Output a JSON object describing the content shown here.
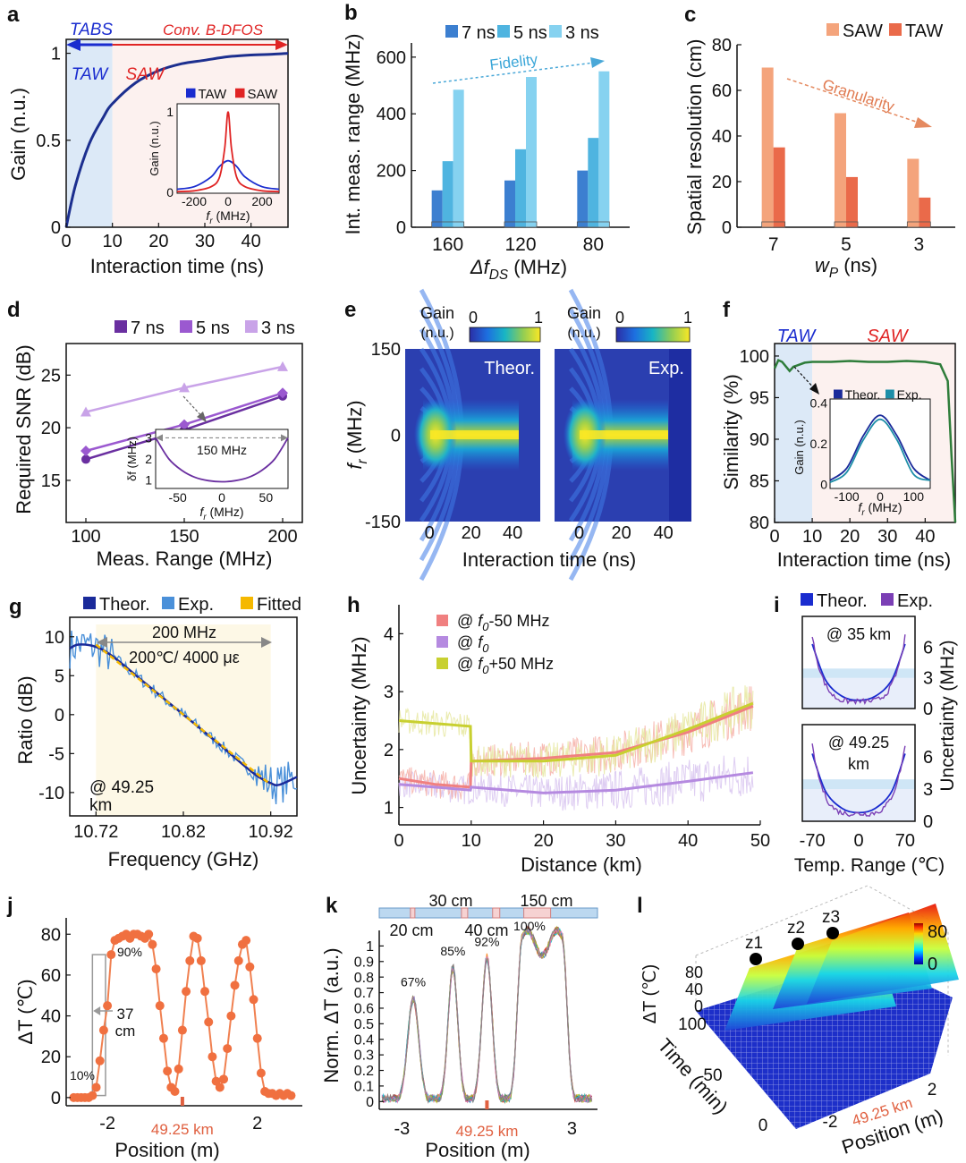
{
  "panels": {
    "a": {
      "letter": "a",
      "xlabel": "Interaction time (ns)",
      "ylabel": "Gain (n.u.)",
      "xticks": [
        "0",
        "10",
        "20",
        "30",
        "40"
      ],
      "yticks": [
        "0",
        "0.5",
        "1"
      ],
      "tabs": "TABS",
      "conv": "Conv. B-DFOS",
      "taw": "TAW",
      "saw": "SAW",
      "inset": {
        "ylabel": "Gain (n.u.)",
        "xlabel": "f_r (MHz)",
        "xticks": [
          "-200",
          "0",
          "200"
        ],
        "yticks": [
          "0",
          "1"
        ],
        "legend": [
          "TAW",
          "SAW"
        ]
      }
    },
    "b": {
      "letter": "b",
      "ylabel": "Int. meas. range (MHz)",
      "xlabel": "Δf_DS (MHz)",
      "yticks": [
        "0",
        "200",
        "400",
        "600"
      ],
      "legend": [
        "7 ns",
        "5 ns",
        "3 ns"
      ],
      "annotation": "Fidelity"
    },
    "c": {
      "letter": "c",
      "ylabel": "Spatial  resolution (cm)",
      "xlabel": "w_P (ns)",
      "yticks": [
        "0",
        "20",
        "40",
        "60",
        "80"
      ],
      "legend": [
        "SAW",
        "TAW"
      ],
      "annotation": "Granularity"
    },
    "d": {
      "letter": "d",
      "ylabel": "Required SNR (dB)",
      "xlabel": "Meas. Range (MHz)",
      "xticks": [
        "100",
        "150",
        "200"
      ],
      "yticks": [
        "15",
        "20",
        "25"
      ],
      "legend": [
        "7 ns",
        "5 ns",
        "3 ns"
      ],
      "inset": {
        "annotation": "150 MHz",
        "ylabel": "δf (MHz)",
        "xlabel": "f_r (MHz)",
        "xticks": [
          "-50",
          "0",
          "50"
        ],
        "yticks": [
          "1",
          "2",
          "3"
        ]
      }
    },
    "e": {
      "letter": "e",
      "ylabel": "f_r (MHz)",
      "xlabel": "Interaction time (ns)",
      "yticks": [
        "150",
        "0",
        "-150"
      ],
      "xticks": [
        "0",
        "20",
        "40"
      ],
      "colorbar_label": [
        "Gain",
        "(n.u.)"
      ],
      "colorbar_ticks": [
        "0",
        "1"
      ],
      "left_label": "Theor.",
      "right_label": "Exp."
    },
    "f": {
      "letter": "f",
      "ylabel": "Similarity (%)",
      "xlabel": "Interaction time (ns)",
      "xticks": [
        "0",
        "10",
        "20",
        "30",
        "40"
      ],
      "yticks": [
        "80",
        "85",
        "90",
        "95",
        "100"
      ],
      "taw": "TAW",
      "saw": "SAW",
      "inset": {
        "legend": [
          "Theor.",
          "Exp."
        ],
        "ylabel": "Gain (n.u.)",
        "xlabel": "f_r (MHz)",
        "xticks": [
          "-100",
          "0",
          "100"
        ],
        "yticks": [
          "0",
          "0.2",
          "0.4"
        ]
      }
    },
    "g": {
      "letter": "g",
      "ylabel": "Ratio (dB)",
      "xlabel": "Frequency (GHz)",
      "xticks": [
        "10.72",
        "10.82",
        "10.92"
      ],
      "yticks": [
        "10",
        "5",
        "0",
        "-5",
        "-10"
      ],
      "legend": [
        "Theor.",
        "Exp.",
        "Fitted"
      ],
      "annotation_range": "200 MHz",
      "annotation_cond": "200℃/ 4000 με",
      "location": "@ 49.25\nkm"
    },
    "h": {
      "letter": "h",
      "ylabel": "Uncertainty (MHz)",
      "xlabel": "Distance (km)",
      "xticks": [
        "0",
        "10",
        "20",
        "30",
        "40",
        "50"
      ],
      "yticks": [
        "1",
        "2",
        "3",
        "4"
      ],
      "legend": [
        "@ f0-50 MHz",
        "@ f0",
        "@ f0+50 MHz"
      ]
    },
    "i": {
      "letter": "i",
      "legend": [
        "Theor.",
        "Exp."
      ],
      "ylabel": "Uncertainty (MHz)",
      "xlabel": "Temp. Range (℃)",
      "xticks": [
        "-70",
        "0",
        "70"
      ],
      "yticks": [
        "0",
        "3",
        "6"
      ],
      "top_label": "@ 35 km",
      "bottom_label": "@ 49.25\nkm"
    },
    "j": {
      "letter": "j",
      "ylabel": "ΔT (℃)",
      "xlabel": "Position (m)",
      "xticks": [
        "-2",
        "2"
      ],
      "yticks": [
        "0",
        "20",
        "40",
        "60",
        "80"
      ],
      "marker_label": "49.25 km",
      "annotations": {
        "low": "10%",
        "high": "90%",
        "width": "37\ncm"
      }
    },
    "k": {
      "letter": "k",
      "ylabel": "Norm. ΔT (a.u.)",
      "xlabel": "Position (m)",
      "xticks": [
        "-3",
        "3"
      ],
      "yticks": [
        "0",
        "0.1",
        "0.2",
        "0.3",
        "0.4",
        "0.5",
        "0.6",
        "0.7",
        "0.8",
        "0.9",
        "1"
      ],
      "marker_label": "49.25 km",
      "bar_labels": [
        "20 cm",
        "30 cm",
        "40 cm",
        "150 cm"
      ],
      "peak_labels": [
        "67%",
        "85%",
        "92%",
        "100%"
      ]
    },
    "l": {
      "letter": "l",
      "zlabel": "ΔT (℃)",
      "ylabel": "Time (min)",
      "xlabel": "Position (m)",
      "zticks": [
        "0",
        "40",
        "80"
      ],
      "yticks": [
        "0",
        "50",
        "100"
      ],
      "xticks": [
        "-2",
        "2"
      ],
      "marker_label": "49.25 km",
      "points": [
        "z1",
        "z2",
        "z3"
      ],
      "colorbar_ticks": [
        "0",
        "80"
      ]
    }
  },
  "chart_data": [
    {
      "panel": "a",
      "type": "line",
      "title": "",
      "xlabel": "Interaction time (ns)",
      "ylabel": "Gain (n.u.)",
      "xlim": [
        0,
        48
      ],
      "ylim": [
        0,
        1.08
      ],
      "series": [
        {
          "x": [
            0,
            2,
            5,
            8,
            10,
            15,
            20,
            25,
            30,
            35,
            40,
            45,
            48
          ],
          "values": [
            0,
            0.24,
            0.48,
            0.63,
            0.71,
            0.83,
            0.9,
            0.94,
            0.96,
            0.98,
            0.99,
            0.995,
            1.0
          ]
        }
      ]
    },
    {
      "panel": "a-inset",
      "type": "line",
      "xlabel": "f_r (MHz)",
      "ylabel": "Gain (n.u.)",
      "xlim": [
        -300,
        300
      ],
      "ylim": [
        0,
        1.1
      ],
      "series": [
        {
          "name": "TAW",
          "x": [
            -300,
            -200,
            -100,
            -50,
            0,
            50,
            100,
            200,
            300
          ],
          "values": [
            0.05,
            0.08,
            0.2,
            0.33,
            0.4,
            0.33,
            0.2,
            0.08,
            0.05
          ]
        },
        {
          "name": "SAW",
          "x": [
            -300,
            -200,
            -100,
            -50,
            -20,
            0,
            20,
            50,
            100,
            200,
            300
          ],
          "values": [
            0.02,
            0.03,
            0.08,
            0.2,
            0.55,
            1.0,
            0.55,
            0.2,
            0.08,
            0.03,
            0.02
          ]
        }
      ]
    },
    {
      "panel": "b",
      "type": "bar",
      "title": "",
      "xlabel": "Δf_DS (MHz)",
      "ylabel": "Int. meas. range (MHz)",
      "ylim": [
        0,
        650
      ],
      "categories": [
        "160",
        "120",
        "80"
      ],
      "series": [
        {
          "name": "7 ns",
          "values": [
            130,
            165,
            200
          ]
        },
        {
          "name": "5 ns",
          "values": [
            233,
            275,
            315
          ]
        },
        {
          "name": "3 ns",
          "values": [
            485,
            530,
            550
          ]
        }
      ]
    },
    {
      "panel": "c",
      "type": "bar",
      "title": "",
      "xlabel": "w_P (ns)",
      "ylabel": "Spatial  resolution (cm)",
      "ylim": [
        0,
        80
      ],
      "categories": [
        "7",
        "5",
        "3"
      ],
      "series": [
        {
          "name": "SAW",
          "values": [
            70,
            50,
            30
          ]
        },
        {
          "name": "TAW",
          "values": [
            35,
            22,
            13
          ]
        }
      ]
    },
    {
      "panel": "d",
      "type": "line",
      "title": "",
      "xlabel": "Meas. Range (MHz)",
      "ylabel": "Required SNR (dB)",
      "xlim": [
        90,
        210
      ],
      "ylim": [
        11,
        28
      ],
      "x": [
        100,
        150,
        200
      ],
      "series": [
        {
          "name": "7 ns",
          "values": [
            17,
            19.8,
            23
          ]
        },
        {
          "name": "5 ns",
          "values": [
            17.8,
            20.3,
            23.3
          ]
        },
        {
          "name": "3 ns",
          "values": [
            21.5,
            23.8,
            25.8
          ]
        }
      ]
    },
    {
      "panel": "d-inset",
      "type": "line",
      "xlabel": "f_r (MHz)",
      "ylabel": "δf (MHz)",
      "xlim": [
        -75,
        75
      ],
      "ylim": [
        0.6,
        3.4
      ],
      "series": [
        {
          "x": [
            -75,
            -60,
            -45,
            -30,
            -15,
            0,
            15,
            30,
            45,
            60,
            75
          ],
          "values": [
            3.0,
            2.0,
            1.45,
            1.12,
            0.97,
            0.92,
            0.97,
            1.12,
            1.45,
            2.0,
            3.0
          ]
        }
      ]
    },
    {
      "panel": "e",
      "type": "heatmap",
      "xlabel": "Interaction time (ns)",
      "ylabel": "f_r (MHz)",
      "xlim": [
        -10,
        55
      ],
      "ylim": [
        -150,
        150
      ],
      "colorbar": [
        0,
        1
      ]
    },
    {
      "panel": "f",
      "type": "line",
      "title": "",
      "xlabel": "Interaction time (ns)",
      "ylabel": "Similarity (%)",
      "xlim": [
        0,
        48
      ],
      "ylim": [
        80,
        101.5
      ],
      "series": [
        {
          "x": [
            0,
            1,
            2,
            4,
            5,
            8,
            10,
            15,
            20,
            25,
            30,
            35,
            40,
            44,
            46,
            47,
            48
          ],
          "values": [
            98.5,
            99.5,
            99.3,
            98.2,
            98.7,
            99.2,
            99.3,
            99.3,
            99.4,
            99.3,
            99.3,
            99.4,
            99.3,
            99.0,
            97,
            88,
            80
          ]
        }
      ]
    },
    {
      "panel": "f-inset",
      "type": "line",
      "xlabel": "f_r (MHz)",
      "ylabel": "Gain (n.u.)",
      "xlim": [
        -150,
        150
      ],
      "ylim": [
        -0.02,
        0.42
      ],
      "series": [
        {
          "name": "Theor.",
          "x": [
            -150,
            -100,
            -50,
            0,
            50,
            100,
            150
          ],
          "values": [
            0.02,
            0.08,
            0.24,
            0.34,
            0.24,
            0.08,
            0.02
          ]
        },
        {
          "name": "Exp.",
          "x": [
            -150,
            -100,
            -50,
            0,
            50,
            100,
            150
          ],
          "values": [
            0.01,
            0.06,
            0.22,
            0.32,
            0.22,
            0.05,
            0.02
          ]
        }
      ]
    },
    {
      "panel": "g",
      "type": "line",
      "title": "",
      "xlabel": "Frequency (GHz)",
      "ylabel": "Ratio (dB)",
      "xlim": [
        10.69,
        10.95
      ],
      "ylim": [
        -13,
        12.5
      ],
      "series": [
        {
          "name": "Theor.",
          "x": [
            10.69,
            10.7,
            10.72,
            10.74,
            10.78,
            10.82,
            10.86,
            10.9,
            10.92,
            10.93,
            10.95
          ],
          "values": [
            8.5,
            9.0,
            8.7,
            7.4,
            3.7,
            0,
            -3.7,
            -7.5,
            -8.8,
            -9.0,
            -8.0
          ]
        },
        {
          "name": "Fitted",
          "x": [
            10.72,
            10.92
          ],
          "values": [
            9,
            -9
          ]
        }
      ]
    },
    {
      "panel": "h",
      "type": "line",
      "title": "",
      "xlabel": "Distance (km)",
      "ylabel": "Uncertainty (MHz)",
      "xlim": [
        0,
        50
      ],
      "ylim": [
        0.7,
        4.5
      ],
      "series": [
        {
          "name": "@ f0-50 MHz",
          "x": [
            0,
            5,
            9.9,
            10,
            20,
            30,
            40,
            49
          ],
          "values": [
            1.5,
            1.4,
            1.35,
            1.8,
            1.85,
            1.95,
            2.3,
            2.75
          ]
        },
        {
          "name": "@ f0",
          "x": [
            0,
            5,
            9.9,
            10,
            20,
            30,
            40,
            49
          ],
          "values": [
            1.4,
            1.35,
            1.3,
            1.35,
            1.25,
            1.3,
            1.45,
            1.6
          ]
        },
        {
          "name": "@ f0+50 MHz",
          "x": [
            0,
            5,
            9.9,
            10,
            20,
            30,
            40,
            49
          ],
          "values": [
            2.5,
            2.45,
            2.4,
            1.8,
            1.8,
            1.9,
            2.35,
            2.8
          ]
        }
      ]
    },
    {
      "panel": "i",
      "type": "line",
      "xlabel": "Temp. Range (℃)",
      "ylabel": "Uncertainty (MHz)",
      "xlim": [
        -85,
        85
      ],
      "ylim": [
        0,
        9
      ],
      "series": [
        {
          "name": "Theor.",
          "x": [
            -70,
            -50,
            -25,
            0,
            25,
            50,
            70
          ],
          "values": [
            6.3,
            2.8,
            1.2,
            0.8,
            1.2,
            2.8,
            6.3
          ]
        },
        {
          "name": "Exp.",
          "x": [
            -70,
            -50,
            -25,
            0,
            25,
            50,
            70
          ],
          "values": [
            7.0,
            2.0,
            0.9,
            0.7,
            0.9,
            2.2,
            7.2
          ]
        }
      ]
    },
    {
      "panel": "j",
      "type": "line",
      "title": "",
      "xlabel": "Position (m)",
      "ylabel": "ΔT (℃)",
      "xlim": [
        -3.1,
        3.2
      ],
      "ylim": [
        -4,
        88
      ],
      "series": [
        {
          "x": [
            -2.9,
            -2.8,
            -2.7,
            -2.6,
            -2.5,
            -2.4,
            -2.3,
            -2.2,
            -2.1,
            -2.0,
            -1.9,
            -1.8,
            -1.7,
            -1.6,
            -1.5,
            -1.4,
            -1.3,
            -1.2,
            -1.1,
            -1.0,
            -0.9,
            -0.8,
            -0.7,
            -0.6,
            -0.5,
            -0.4,
            -0.3,
            -0.2,
            -0.1,
            0,
            0.1,
            0.2,
            0.3,
            0.4,
            0.5,
            0.6,
            0.7,
            0.8,
            0.9,
            1.0,
            1.1,
            1.2,
            1.3,
            1.4,
            1.5,
            1.6,
            1.7,
            1.8,
            1.9,
            2.0,
            2.1,
            2.2,
            2.3,
            2.4,
            2.5,
            2.6,
            2.7,
            2.8,
            2.9
          ],
          "values": [
            0,
            0,
            0,
            0,
            0,
            1,
            5,
            18,
            33,
            45,
            70,
            77,
            78,
            79,
            80,
            78,
            80,
            80,
            79,
            78,
            80,
            75,
            63,
            45,
            29,
            13,
            5,
            3,
            14,
            33,
            52,
            67,
            79,
            78,
            67,
            52,
            37,
            20,
            8,
            5,
            9,
            24,
            40,
            55,
            67,
            75,
            77,
            64,
            48,
            29,
            12,
            3,
            2,
            2,
            1,
            2,
            1,
            2,
            1
          ]
        }
      ]
    },
    {
      "panel": "k",
      "type": "line",
      "title": "",
      "xlabel": "Position (m)",
      "ylabel": "Norm. ΔT (a.u.)",
      "xlim": [
        -3.8,
        3.9
      ],
      "ylim": [
        -0.05,
        1.1
      ],
      "series": [
        {
          "x": [
            -3.8,
            -3.4,
            -3.0,
            -2.6,
            -2.2,
            -1.9,
            -1.5,
            -1.2,
            -0.9,
            -0.6,
            -0.3,
            0,
            0.3,
            0.6,
            0.9,
            1.2,
            1.5,
            1.9,
            2.3,
            2.7,
            3.0,
            3.3,
            3.8
          ],
          "values": [
            0.02,
            0.02,
            0.05,
            0.55,
            0.2,
            0.08,
            0.3,
            0.9,
            0.2,
            0.02,
            0.1,
            0.9,
            0.35,
            0.02,
            0.05,
            0.9,
            1.0,
            1.02,
            1.05,
            0.9,
            0.4,
            0.06,
            0.02
          ]
        }
      ]
    },
    {
      "panel": "l",
      "type": "surface",
      "xlabel": "Position (m)",
      "ylabel": "Time (min)",
      "zlabel": "ΔT (℃)",
      "xlim": [
        -3,
        3
      ],
      "ylim": [
        0,
        100
      ],
      "zlim": [
        0,
        80
      ]
    }
  ]
}
